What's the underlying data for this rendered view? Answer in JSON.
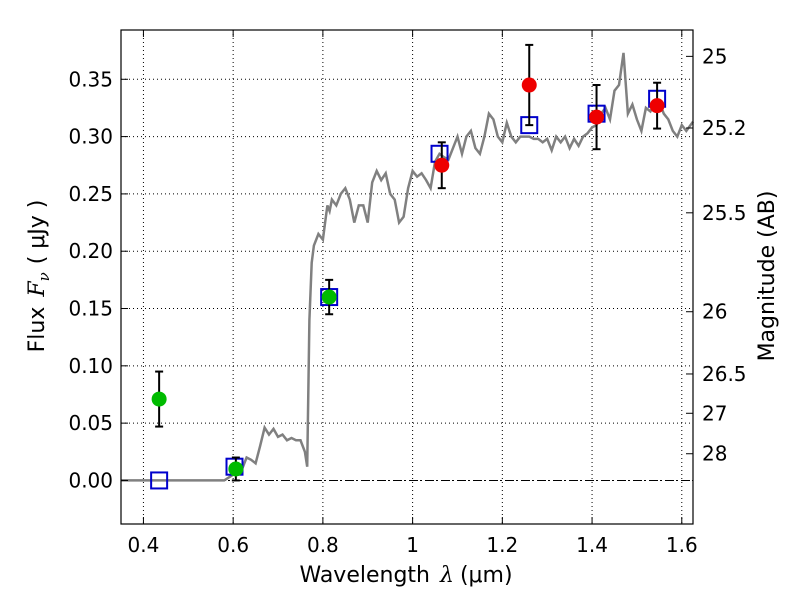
{
  "chart_data": {
    "type": "scatter",
    "title": "",
    "xlabel_prefix": "Wavelength",
    "xlabel_symbol": "λ",
    "xlabel_unit": "(μm)",
    "ylabel_prefix": "Flux",
    "ylabel_symbol": "F",
    "ylabel_subscript": "ν",
    "ylabel_unit": "( μJy )",
    "y2label": "Magnitude (AB)",
    "xlim": [
      0.35,
      1.625
    ],
    "ylim": [
      -0.038,
      0.393
    ],
    "grid": true,
    "x_ticks": [
      0.4,
      0.6,
      0.8,
      1.0,
      1.2,
      1.4,
      1.6
    ],
    "x_tick_labels": [
      "0.4",
      "0.6",
      "0.8",
      "1",
      "1.2",
      "1.4",
      "1.6"
    ],
    "y_ticks": [
      0.0,
      0.05,
      0.1,
      0.15,
      0.2,
      0.25,
      0.3,
      0.35
    ],
    "y_tick_labels": [
      "0.00",
      "0.05",
      "0.10",
      "0.15",
      "0.20",
      "0.25",
      "0.30",
      "0.35"
    ],
    "y2_ticks": [
      {
        "label": "25",
        "flux": 0.37
      },
      {
        "label": "25.2",
        "flux": 0.3075
      },
      {
        "label": "25.5",
        "flux": 0.2335
      },
      {
        "label": "26",
        "flux": 0.1472
      },
      {
        "label": "26.5",
        "flux": 0.0929
      },
      {
        "label": "27",
        "flux": 0.0586
      },
      {
        "label": "28",
        "flux": 0.0233
      }
    ],
    "model_spectrum": {
      "color": "#808080",
      "x": [
        0.35,
        0.4,
        0.45,
        0.5,
        0.55,
        0.58,
        0.6,
        0.62,
        0.63,
        0.64,
        0.65,
        0.66,
        0.67,
        0.68,
        0.69,
        0.7,
        0.71,
        0.72,
        0.73,
        0.74,
        0.75,
        0.76,
        0.765,
        0.77,
        0.775,
        0.78,
        0.79,
        0.8,
        0.805,
        0.81,
        0.815,
        0.82,
        0.83,
        0.84,
        0.85,
        0.86,
        0.87,
        0.88,
        0.89,
        0.9,
        0.91,
        0.92,
        0.93,
        0.94,
        0.95,
        0.96,
        0.97,
        0.98,
        0.99,
        1.0,
        1.01,
        1.02,
        1.03,
        1.04,
        1.05,
        1.06,
        1.07,
        1.08,
        1.09,
        1.1,
        1.11,
        1.12,
        1.13,
        1.14,
        1.15,
        1.16,
        1.17,
        1.18,
        1.19,
        1.2,
        1.21,
        1.22,
        1.23,
        1.24,
        1.25,
        1.26,
        1.27,
        1.28,
        1.29,
        1.3,
        1.31,
        1.32,
        1.33,
        1.34,
        1.35,
        1.36,
        1.37,
        1.38,
        1.39,
        1.4,
        1.41,
        1.42,
        1.43,
        1.44,
        1.45,
        1.46,
        1.47,
        1.48,
        1.49,
        1.5,
        1.51,
        1.52,
        1.53,
        1.54,
        1.55,
        1.56,
        1.57,
        1.58,
        1.59,
        1.6,
        1.61,
        1.625
      ],
      "y": [
        0.0,
        0.0,
        0.0,
        0.0,
        0.0,
        0.0,
        0.005,
        0.01,
        0.02,
        0.018,
        0.015,
        0.03,
        0.046,
        0.04,
        0.045,
        0.038,
        0.04,
        0.035,
        0.037,
        0.035,
        0.035,
        0.025,
        0.012,
        0.14,
        0.19,
        0.205,
        0.215,
        0.21,
        0.225,
        0.24,
        0.235,
        0.245,
        0.24,
        0.25,
        0.255,
        0.245,
        0.225,
        0.24,
        0.24,
        0.225,
        0.26,
        0.27,
        0.262,
        0.268,
        0.25,
        0.245,
        0.225,
        0.23,
        0.255,
        0.27,
        0.265,
        0.268,
        0.262,
        0.255,
        0.278,
        0.285,
        0.282,
        0.28,
        0.29,
        0.3,
        0.285,
        0.3,
        0.305,
        0.29,
        0.285,
        0.3,
        0.32,
        0.315,
        0.3,
        0.295,
        0.312,
        0.3,
        0.295,
        0.3,
        0.3,
        0.3,
        0.298,
        0.298,
        0.295,
        0.298,
        0.288,
        0.3,
        0.295,
        0.3,
        0.29,
        0.298,
        0.292,
        0.3,
        0.303,
        0.308,
        0.31,
        0.32,
        0.325,
        0.315,
        0.34,
        0.345,
        0.373,
        0.32,
        0.328,
        0.315,
        0.305,
        0.325,
        0.322,
        0.33,
        0.33,
        0.32,
        0.315,
        0.305,
        0.3,
        0.31,
        0.305,
        0.313
      ]
    },
    "series": [
      {
        "marker": "open-square",
        "color": "#0000cc",
        "points": [
          [
            0.435,
            0.0
          ],
          [
            0.603,
            0.012
          ],
          [
            0.814,
            0.16
          ],
          [
            1.06,
            0.285
          ],
          [
            1.26,
            0.31
          ],
          [
            1.41,
            0.32
          ],
          [
            1.545,
            0.333
          ]
        ]
      },
      {
        "marker": "filled-circle",
        "color": "#00bb00",
        "points": [
          [
            0.435,
            0.071,
            0.024
          ],
          [
            0.606,
            0.01,
            0.01
          ],
          [
            0.814,
            0.16,
            0.015
          ]
        ]
      },
      {
        "marker": "filled-circle",
        "color": "#ee0000",
        "points": [
          [
            1.065,
            0.275,
            0.02
          ],
          [
            1.26,
            0.345,
            0.035
          ],
          [
            1.41,
            0.317,
            0.028
          ],
          [
            1.545,
            0.327,
            0.02
          ]
        ]
      }
    ],
    "zero_line": true
  }
}
